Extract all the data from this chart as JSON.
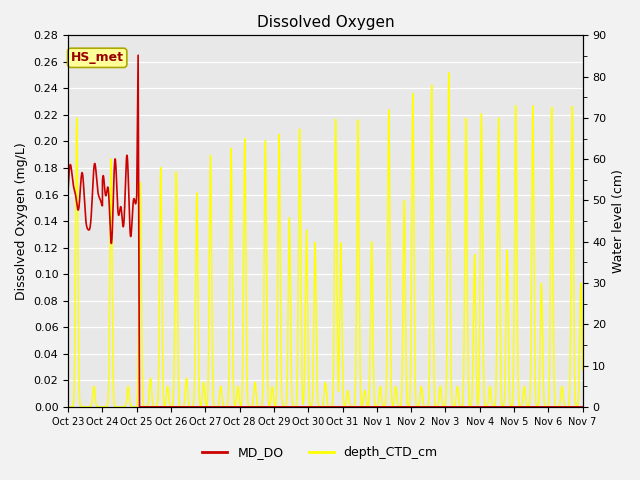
{
  "title": "Dissolved Oxygen",
  "ylabel_left": "Dissolved Oxygen (mg/L)",
  "ylabel_right": "Water level (cm)",
  "ylim_left": [
    0.0,
    0.28
  ],
  "ylim_right": [
    0,
    90
  ],
  "yticks_left": [
    0.0,
    0.02,
    0.04,
    0.06,
    0.08,
    0.1,
    0.12,
    0.14,
    0.16,
    0.18,
    0.2,
    0.22,
    0.24,
    0.26,
    0.28
  ],
  "yticks_right": [
    0,
    10,
    20,
    30,
    40,
    50,
    60,
    70,
    80,
    90
  ],
  "yticks_right_minor": [
    5,
    15,
    25,
    35,
    45,
    55,
    65,
    75,
    85
  ],
  "xtick_labels": [
    "Oct 23",
    "Oct 24",
    "Oct 25",
    "Oct 26",
    "Oct 27",
    "Oct 28",
    "Oct 29",
    "Oct 30",
    "Oct 31",
    "Nov 1",
    "Nov 2",
    "Nov 3",
    "Nov 4",
    "Nov 5",
    "Nov 6",
    "Nov 7"
  ],
  "bg_color": "#e8e8e8",
  "grid_color": "#ffffff",
  "annotation_text": "HS_met",
  "annotation_bg": "#ffff99",
  "annotation_border": "#aaa800",
  "line_do_color": "#cc0000",
  "line_depth_color": "#ffff00",
  "line_depth_edge_color": "#cccc00",
  "legend_do_label": "MD_DO",
  "legend_depth_label": "depth_CTD_cm",
  "fig_bg": "#f2f2f2"
}
